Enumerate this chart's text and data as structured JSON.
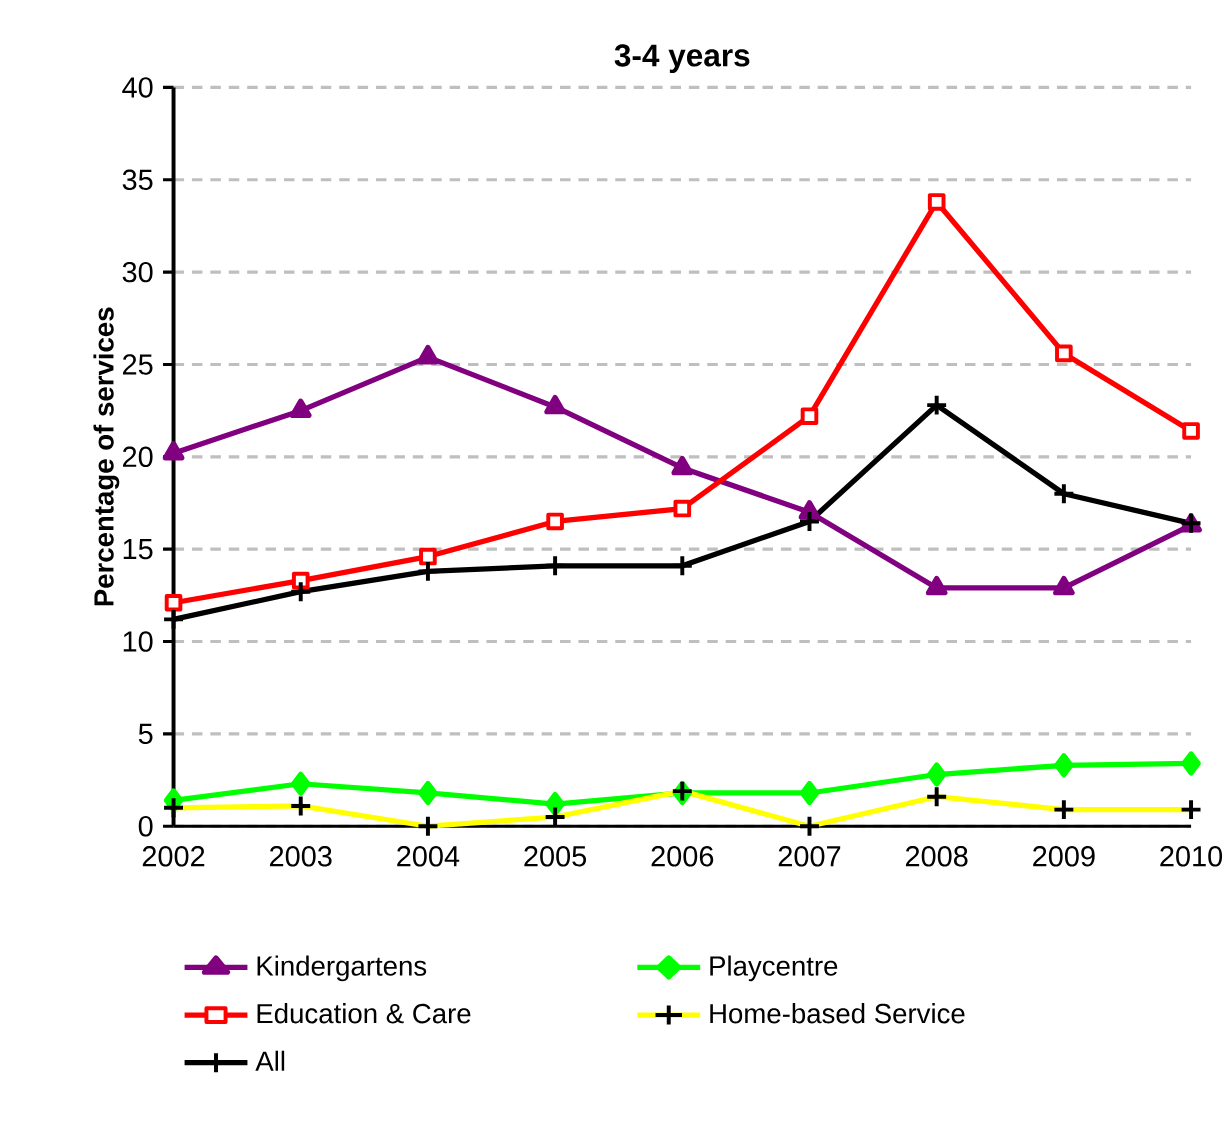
{
  "chart_data": {
    "type": "line",
    "title": "3-4 years",
    "ylabel": "Percentage of services",
    "categories": [
      "2002",
      "2003",
      "2004",
      "2005",
      "2006",
      "2007",
      "2008",
      "2009",
      "2010"
    ],
    "ylim": [
      0,
      40
    ],
    "yticks": [
      0,
      5,
      10,
      15,
      20,
      25,
      30,
      35,
      40
    ],
    "grid": "y",
    "legend": "bottom",
    "line_style": "solid",
    "series": [
      {
        "name": "Kindergartens",
        "color": "#800080",
        "marker": "triangle",
        "values": [
          20.2,
          22.5,
          25.4,
          22.7,
          19.4,
          17.0,
          12.9,
          12.9,
          16.3
        ]
      },
      {
        "name": "Playcentre",
        "color": "#00ff00",
        "marker": "diamond",
        "values": [
          1.4,
          2.3,
          1.8,
          1.2,
          1.8,
          1.8,
          2.8,
          3.3,
          3.4
        ]
      },
      {
        "name": "Education & Care",
        "color": "#ff0000",
        "marker": "square",
        "values": [
          12.1,
          13.3,
          14.6,
          16.5,
          17.2,
          22.2,
          33.8,
          25.6,
          21.4
        ]
      },
      {
        "name": "Home-based Service",
        "color": "#ffff00",
        "marker": "cross",
        "values": [
          1.0,
          1.1,
          0,
          0.5,
          1.9,
          0,
          1.6,
          0.9,
          0.9
        ]
      },
      {
        "name": "All",
        "color": "#000000",
        "marker": "cross",
        "values": [
          11.2,
          12.7,
          13.8,
          14.1,
          14.1,
          16.5,
          22.8,
          18.0,
          16.4
        ]
      }
    ]
  }
}
